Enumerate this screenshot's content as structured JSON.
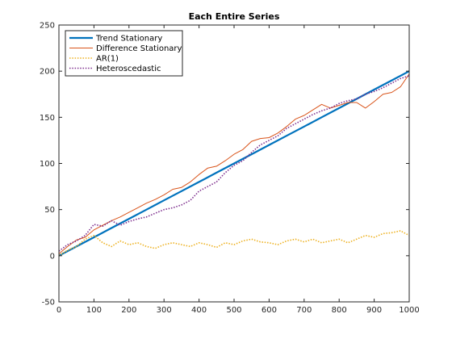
{
  "chart_data": {
    "type": "line",
    "title": "Each Entire Series",
    "xlabel": "",
    "ylabel": "",
    "xlim": [
      0,
      1000
    ],
    "ylim": [
      -50,
      250
    ],
    "xticks": [
      0,
      100,
      200,
      300,
      400,
      500,
      600,
      700,
      800,
      900,
      1000
    ],
    "yticks": [
      -50,
      0,
      50,
      100,
      150,
      200,
      250
    ],
    "grid": false,
    "legend_position": "top-left",
    "series": [
      {
        "name": "Trend Stationary",
        "color": "#0072BD",
        "style": "solid-thick",
        "x": [
          0,
          50,
          100,
          150,
          200,
          250,
          300,
          350,
          400,
          450,
          500,
          550,
          600,
          650,
          700,
          750,
          800,
          850,
          900,
          950,
          1000
        ],
        "y": [
          0,
          10,
          20,
          30,
          40,
          50,
          60,
          70,
          80,
          90,
          100,
          110,
          120,
          130,
          140,
          150,
          160,
          170,
          180,
          190,
          200
        ]
      },
      {
        "name": "Difference Stationary",
        "color": "#D95319",
        "style": "solid-thin",
        "x": [
          0,
          25,
          50,
          75,
          100,
          125,
          150,
          175,
          200,
          225,
          250,
          275,
          300,
          325,
          350,
          375,
          400,
          425,
          450,
          475,
          500,
          525,
          550,
          575,
          600,
          625,
          650,
          675,
          700,
          725,
          750,
          775,
          800,
          825,
          850,
          875,
          900,
          925,
          950,
          975,
          1000
        ],
        "y": [
          2,
          10,
          17,
          20,
          28,
          33,
          38,
          42,
          47,
          52,
          57,
          61,
          66,
          72,
          74,
          80,
          88,
          95,
          97,
          103,
          110,
          115,
          124,
          127,
          128,
          133,
          140,
          148,
          152,
          158,
          164,
          160,
          163,
          166,
          166,
          160,
          167,
          175,
          177,
          183,
          197
        ]
      },
      {
        "name": "AR(1)",
        "color": "#EDB120",
        "style": "dotted",
        "x": [
          0,
          25,
          50,
          75,
          100,
          125,
          150,
          175,
          200,
          225,
          250,
          275,
          300,
          325,
          350,
          375,
          400,
          425,
          450,
          475,
          500,
          525,
          550,
          575,
          600,
          625,
          650,
          675,
          700,
          725,
          750,
          775,
          800,
          825,
          850,
          875,
          900,
          925,
          950,
          975,
          1000
        ],
        "y": [
          0,
          6,
          10,
          18,
          22,
          14,
          10,
          16,
          12,
          14,
          10,
          8,
          12,
          14,
          12,
          10,
          14,
          12,
          9,
          14,
          12,
          16,
          18,
          15,
          14,
          12,
          16,
          18,
          15,
          18,
          14,
          16,
          18,
          14,
          18,
          22,
          20,
          24,
          25,
          27,
          22
        ]
      },
      {
        "name": "Heteroscedastic",
        "color": "#7E2F8E",
        "style": "dotted",
        "x": [
          0,
          25,
          50,
          75,
          100,
          125,
          150,
          175,
          200,
          225,
          250,
          275,
          300,
          325,
          350,
          375,
          400,
          425,
          450,
          475,
          500,
          525,
          550,
          575,
          600,
          625,
          650,
          675,
          700,
          725,
          750,
          775,
          800,
          825,
          850,
          875,
          900,
          925,
          950,
          975,
          1000
        ],
        "y": [
          5,
          12,
          16,
          22,
          34,
          32,
          38,
          33,
          37,
          40,
          42,
          46,
          50,
          52,
          55,
          60,
          70,
          75,
          80,
          90,
          98,
          103,
          112,
          120,
          125,
          130,
          138,
          143,
          148,
          153,
          157,
          160,
          165,
          168,
          170,
          175,
          178,
          182,
          187,
          192,
          195
        ]
      }
    ]
  }
}
